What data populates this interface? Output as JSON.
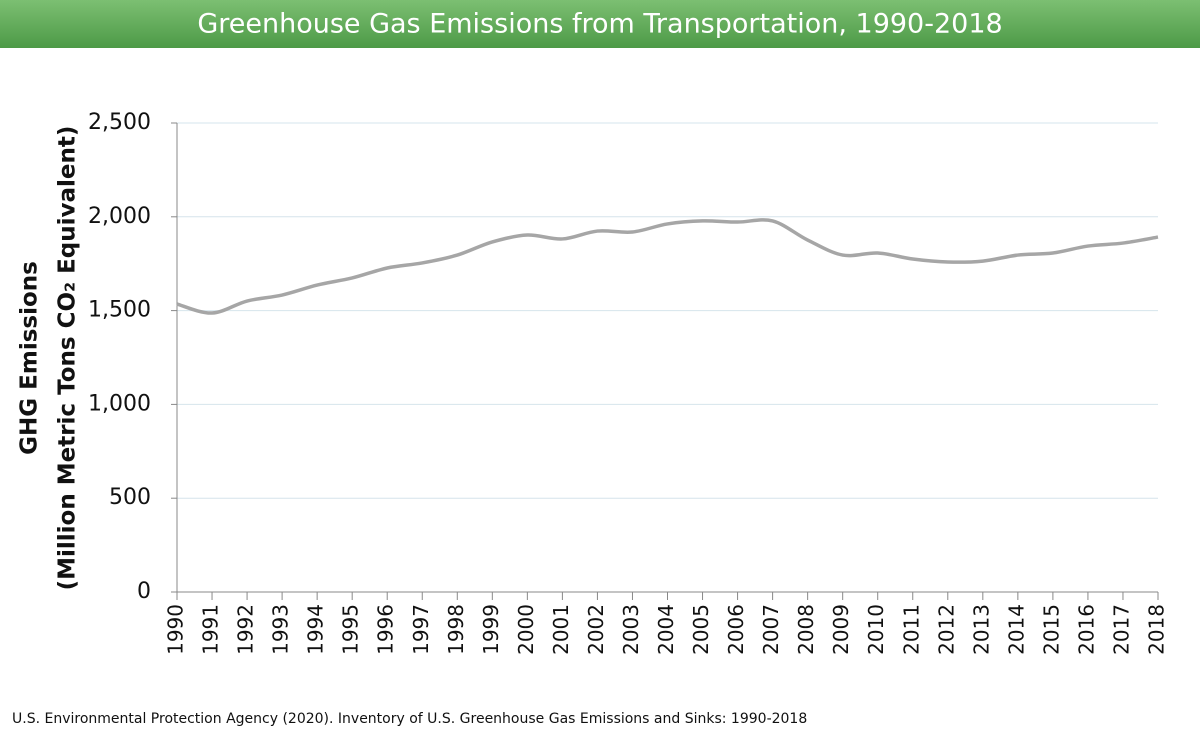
{
  "chart_data": {
    "type": "line",
    "title": "Greenhouse Gas Emissions from Transportation, 1990-2018",
    "y_label": [
      "GHG Emissions",
      "(Million Metric Tons CO₂ Equivalent)"
    ],
    "source": "U.S. Environmental Protection Agency (2020). Inventory of U.S. Greenhouse Gas Emissions and Sinks: 1990-2018",
    "categories": [
      "1990",
      "1991",
      "1992",
      "1993",
      "1994",
      "1995",
      "1996",
      "1997",
      "1998",
      "1999",
      "2000",
      "2001",
      "2002",
      "2003",
      "2004",
      "2005",
      "2006",
      "2007",
      "2008",
      "2009",
      "2010",
      "2011",
      "2012",
      "2013",
      "2014",
      "2015",
      "2016",
      "2017",
      "2018"
    ],
    "values": [
      1535,
      1487,
      1551,
      1583,
      1636,
      1674,
      1727,
      1754,
      1796,
      1866,
      1903,
      1882,
      1924,
      1919,
      1962,
      1978,
      1972,
      1978,
      1876,
      1796,
      1807,
      1775,
      1759,
      1764,
      1796,
      1807,
      1844,
      1860,
      1892
    ],
    "color": "#a6a6a6",
    "ylim": [
      0,
      2500
    ],
    "yticks": [
      0,
      500,
      {
        "value": 1000,
        "label": "1,000"
      },
      {
        "value": 1500,
        "label": "1,500"
      },
      {
        "value": 2000,
        "label": "2,000"
      },
      {
        "value": 2500,
        "label": "2,500"
      }
    ],
    "grid": true
  }
}
